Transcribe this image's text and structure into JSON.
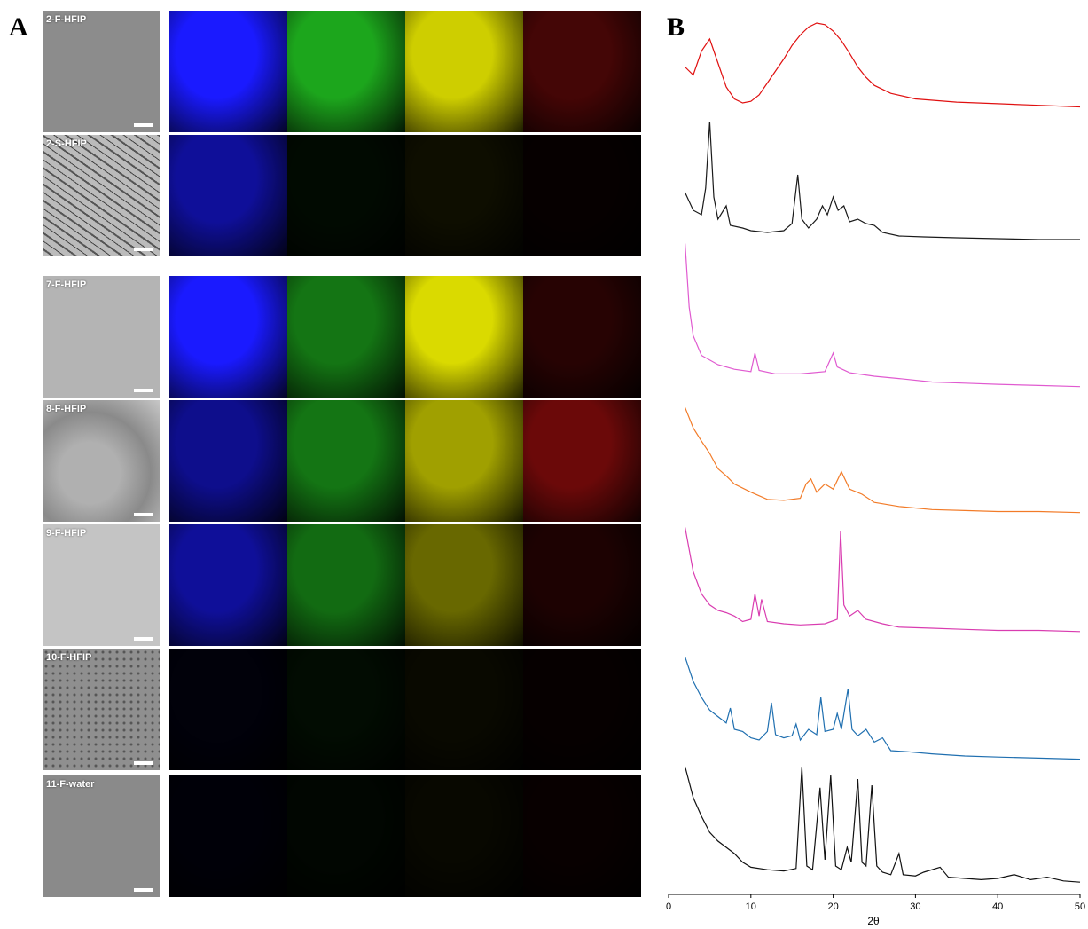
{
  "figure": {
    "panel_a_letter": "A",
    "panel_b_letter": "B"
  },
  "panel_a": {
    "rows": [
      {
        "label": "2-F-HFIP",
        "channels": [
          "blue",
          "green",
          "yellow",
          "red"
        ],
        "intensity": [
          1.0,
          0.85,
          0.9,
          0.35
        ]
      },
      {
        "label": "2-S-HFIP",
        "channels": [
          "blue",
          "green",
          "yellow",
          "red"
        ],
        "intensity": [
          0.6,
          0.05,
          0.06,
          0.03
        ]
      },
      {
        "label": "7-F-HFIP",
        "channels": [
          "blue",
          "green",
          "yellow",
          "red"
        ],
        "intensity": [
          1.0,
          0.6,
          0.95,
          0.2
        ]
      },
      {
        "label": "8-F-HFIP",
        "channels": [
          "blue",
          "green",
          "yellow",
          "red"
        ],
        "intensity": [
          0.55,
          0.6,
          0.7,
          0.55
        ]
      },
      {
        "label": "9-F-HFIP",
        "channels": [
          "blue",
          "green",
          "yellow",
          "red"
        ],
        "intensity": [
          0.6,
          0.55,
          0.45,
          0.15
        ]
      },
      {
        "label": "10-F-HFIP",
        "channels": [
          "blue",
          "green",
          "yellow",
          "red"
        ],
        "intensity": [
          0.04,
          0.06,
          0.04,
          0.03
        ]
      },
      {
        "label": "11-F-water",
        "channels": [
          "blue",
          "green",
          "yellow",
          "red"
        ],
        "intensity": [
          0.03,
          0.03,
          0.03,
          0.04
        ]
      }
    ],
    "colors": {
      "blue": "#1a1aff",
      "green": "#22c422",
      "yellow": "#e6e600",
      "red": "#c41212"
    }
  },
  "chart_data": {
    "type": "line",
    "xlabel": "2θ",
    "xlim": [
      0,
      50
    ],
    "xticks": [
      0,
      10,
      20,
      30,
      40,
      50
    ],
    "series": [
      {
        "color": "#e01010",
        "baseline": 0,
        "points": [
          [
            2,
            0.55
          ],
          [
            3,
            0.45
          ],
          [
            4,
            0.75
          ],
          [
            5,
            0.9
          ],
          [
            6,
            0.6
          ],
          [
            7,
            0.3
          ],
          [
            8,
            0.15
          ],
          [
            9,
            0.1
          ],
          [
            10,
            0.12
          ],
          [
            11,
            0.2
          ],
          [
            12,
            0.35
          ],
          [
            13,
            0.5
          ],
          [
            14,
            0.65
          ],
          [
            15,
            0.82
          ],
          [
            16,
            0.95
          ],
          [
            17,
            1.05
          ],
          [
            18,
            1.1
          ],
          [
            19,
            1.08
          ],
          [
            20,
            1.0
          ],
          [
            21,
            0.88
          ],
          [
            22,
            0.72
          ],
          [
            23,
            0.55
          ],
          [
            24,
            0.42
          ],
          [
            25,
            0.32
          ],
          [
            27,
            0.22
          ],
          [
            30,
            0.15
          ],
          [
            35,
            0.11
          ],
          [
            40,
            0.09
          ],
          [
            45,
            0.07
          ],
          [
            50,
            0.05
          ]
        ]
      },
      {
        "color": "#1a1a1a",
        "baseline": 1,
        "points": [
          [
            2,
            0.55
          ],
          [
            3,
            0.35
          ],
          [
            4,
            0.3
          ],
          [
            4.5,
            0.6
          ],
          [
            5,
            1.35
          ],
          [
            5.5,
            0.5
          ],
          [
            6,
            0.25
          ],
          [
            7,
            0.4
          ],
          [
            7.5,
            0.18
          ],
          [
            9,
            0.15
          ],
          [
            10,
            0.12
          ],
          [
            12,
            0.1
          ],
          [
            14,
            0.12
          ],
          [
            15,
            0.2
          ],
          [
            15.7,
            0.75
          ],
          [
            16.2,
            0.25
          ],
          [
            17,
            0.15
          ],
          [
            18,
            0.25
          ],
          [
            18.7,
            0.4
          ],
          [
            19.3,
            0.3
          ],
          [
            20,
            0.5
          ],
          [
            20.6,
            0.35
          ],
          [
            21.3,
            0.4
          ],
          [
            22,
            0.22
          ],
          [
            23,
            0.25
          ],
          [
            24,
            0.2
          ],
          [
            25,
            0.18
          ],
          [
            26,
            0.1
          ],
          [
            28,
            0.06
          ],
          [
            31,
            0.05
          ],
          [
            35,
            0.04
          ],
          [
            40,
            0.03
          ],
          [
            45,
            0.02
          ],
          [
            50,
            0.02
          ]
        ]
      },
      {
        "color": "#e05ad0",
        "baseline": 2,
        "points": [
          [
            2,
            1.25
          ],
          [
            2.5,
            0.7
          ],
          [
            3,
            0.45
          ],
          [
            4,
            0.28
          ],
          [
            6,
            0.2
          ],
          [
            8,
            0.16
          ],
          [
            10,
            0.14
          ],
          [
            10.5,
            0.3
          ],
          [
            11,
            0.15
          ],
          [
            13,
            0.12
          ],
          [
            16,
            0.12
          ],
          [
            19,
            0.14
          ],
          [
            20,
            0.3
          ],
          [
            20.5,
            0.18
          ],
          [
            22,
            0.13
          ],
          [
            25,
            0.1
          ],
          [
            28,
            0.08
          ],
          [
            32,
            0.05
          ],
          [
            36,
            0.04
          ],
          [
            40,
            0.03
          ],
          [
            45,
            0.02
          ],
          [
            50,
            0.01
          ]
        ]
      },
      {
        "color": "#f27b28",
        "baseline": 3,
        "points": [
          [
            2,
            1.05
          ],
          [
            3,
            0.85
          ],
          [
            4,
            0.72
          ],
          [
            5,
            0.6
          ],
          [
            6,
            0.45
          ],
          [
            7,
            0.38
          ],
          [
            8,
            0.3
          ],
          [
            10,
            0.22
          ],
          [
            12,
            0.15
          ],
          [
            14,
            0.14
          ],
          [
            16,
            0.16
          ],
          [
            16.7,
            0.3
          ],
          [
            17.3,
            0.35
          ],
          [
            18,
            0.22
          ],
          [
            19,
            0.3
          ],
          [
            20,
            0.25
          ],
          [
            21,
            0.42
          ],
          [
            22,
            0.25
          ],
          [
            23.5,
            0.2
          ],
          [
            25,
            0.12
          ],
          [
            28,
            0.08
          ],
          [
            32,
            0.05
          ],
          [
            36,
            0.04
          ],
          [
            40,
            0.03
          ],
          [
            45,
            0.03
          ],
          [
            50,
            0.02
          ]
        ]
      },
      {
        "color": "#d93cb0",
        "baseline": 4,
        "points": [
          [
            2,
            0.95
          ],
          [
            3,
            0.55
          ],
          [
            4,
            0.35
          ],
          [
            5,
            0.25
          ],
          [
            6,
            0.2
          ],
          [
            7,
            0.18
          ],
          [
            8,
            0.15
          ],
          [
            9,
            0.1
          ],
          [
            10,
            0.12
          ],
          [
            10.5,
            0.35
          ],
          [
            11,
            0.15
          ],
          [
            11.3,
            0.3
          ],
          [
            12,
            0.1
          ],
          [
            14,
            0.08
          ],
          [
            16,
            0.07
          ],
          [
            19,
            0.08
          ],
          [
            20.5,
            0.12
          ],
          [
            20.9,
            0.92
          ],
          [
            21.3,
            0.25
          ],
          [
            22,
            0.15
          ],
          [
            23,
            0.2
          ],
          [
            24,
            0.12
          ],
          [
            26,
            0.08
          ],
          [
            28,
            0.05
          ],
          [
            32,
            0.04
          ],
          [
            36,
            0.03
          ],
          [
            40,
            0.02
          ],
          [
            45,
            0.02
          ],
          [
            50,
            0.01
          ]
        ]
      },
      {
        "color": "#1f6fb0",
        "baseline": 5,
        "points": [
          [
            2,
            0.98
          ],
          [
            3,
            0.75
          ],
          [
            4,
            0.6
          ],
          [
            5,
            0.48
          ],
          [
            6,
            0.42
          ],
          [
            7,
            0.36
          ],
          [
            7.5,
            0.5
          ],
          [
            8,
            0.3
          ],
          [
            9,
            0.28
          ],
          [
            10,
            0.22
          ],
          [
            11,
            0.2
          ],
          [
            12,
            0.28
          ],
          [
            12.5,
            0.55
          ],
          [
            13,
            0.25
          ],
          [
            14,
            0.22
          ],
          [
            15,
            0.24
          ],
          [
            15.5,
            0.35
          ],
          [
            16,
            0.2
          ],
          [
            17,
            0.3
          ],
          [
            18,
            0.25
          ],
          [
            18.5,
            0.6
          ],
          [
            19,
            0.28
          ],
          [
            20,
            0.3
          ],
          [
            20.5,
            0.45
          ],
          [
            21,
            0.3
          ],
          [
            21.8,
            0.68
          ],
          [
            22.3,
            0.3
          ],
          [
            23,
            0.24
          ],
          [
            24,
            0.3
          ],
          [
            25,
            0.18
          ],
          [
            26,
            0.22
          ],
          [
            27,
            0.1
          ],
          [
            29,
            0.09
          ],
          [
            32,
            0.07
          ],
          [
            36,
            0.05
          ],
          [
            40,
            0.04
          ],
          [
            45,
            0.03
          ],
          [
            50,
            0.02
          ]
        ]
      },
      {
        "color": "#111111",
        "baseline": 6,
        "points": [
          [
            2,
            0.95
          ],
          [
            3,
            0.7
          ],
          [
            4,
            0.55
          ],
          [
            5,
            0.42
          ],
          [
            6,
            0.35
          ],
          [
            7,
            0.3
          ],
          [
            8,
            0.25
          ],
          [
            9,
            0.18
          ],
          [
            10,
            0.14
          ],
          [
            12,
            0.12
          ],
          [
            14,
            0.11
          ],
          [
            15.5,
            0.13
          ],
          [
            16.2,
            0.95
          ],
          [
            16.8,
            0.15
          ],
          [
            17.5,
            0.12
          ],
          [
            18.4,
            0.78
          ],
          [
            19,
            0.2
          ],
          [
            19.7,
            0.88
          ],
          [
            20.3,
            0.15
          ],
          [
            21,
            0.12
          ],
          [
            21.7,
            0.3
          ],
          [
            22.2,
            0.18
          ],
          [
            23,
            0.85
          ],
          [
            23.5,
            0.18
          ],
          [
            24,
            0.15
          ],
          [
            24.7,
            0.8
          ],
          [
            25.3,
            0.15
          ],
          [
            26,
            0.1
          ],
          [
            27,
            0.08
          ],
          [
            28,
            0.25
          ],
          [
            28.5,
            0.08
          ],
          [
            30,
            0.07
          ],
          [
            31,
            0.1
          ],
          [
            33,
            0.14
          ],
          [
            34,
            0.06
          ],
          [
            36,
            0.05
          ],
          [
            38,
            0.04
          ],
          [
            40,
            0.05
          ],
          [
            42,
            0.08
          ],
          [
            44,
            0.04
          ],
          [
            46,
            0.06
          ],
          [
            48,
            0.03
          ],
          [
            50,
            0.02
          ]
        ]
      }
    ]
  }
}
